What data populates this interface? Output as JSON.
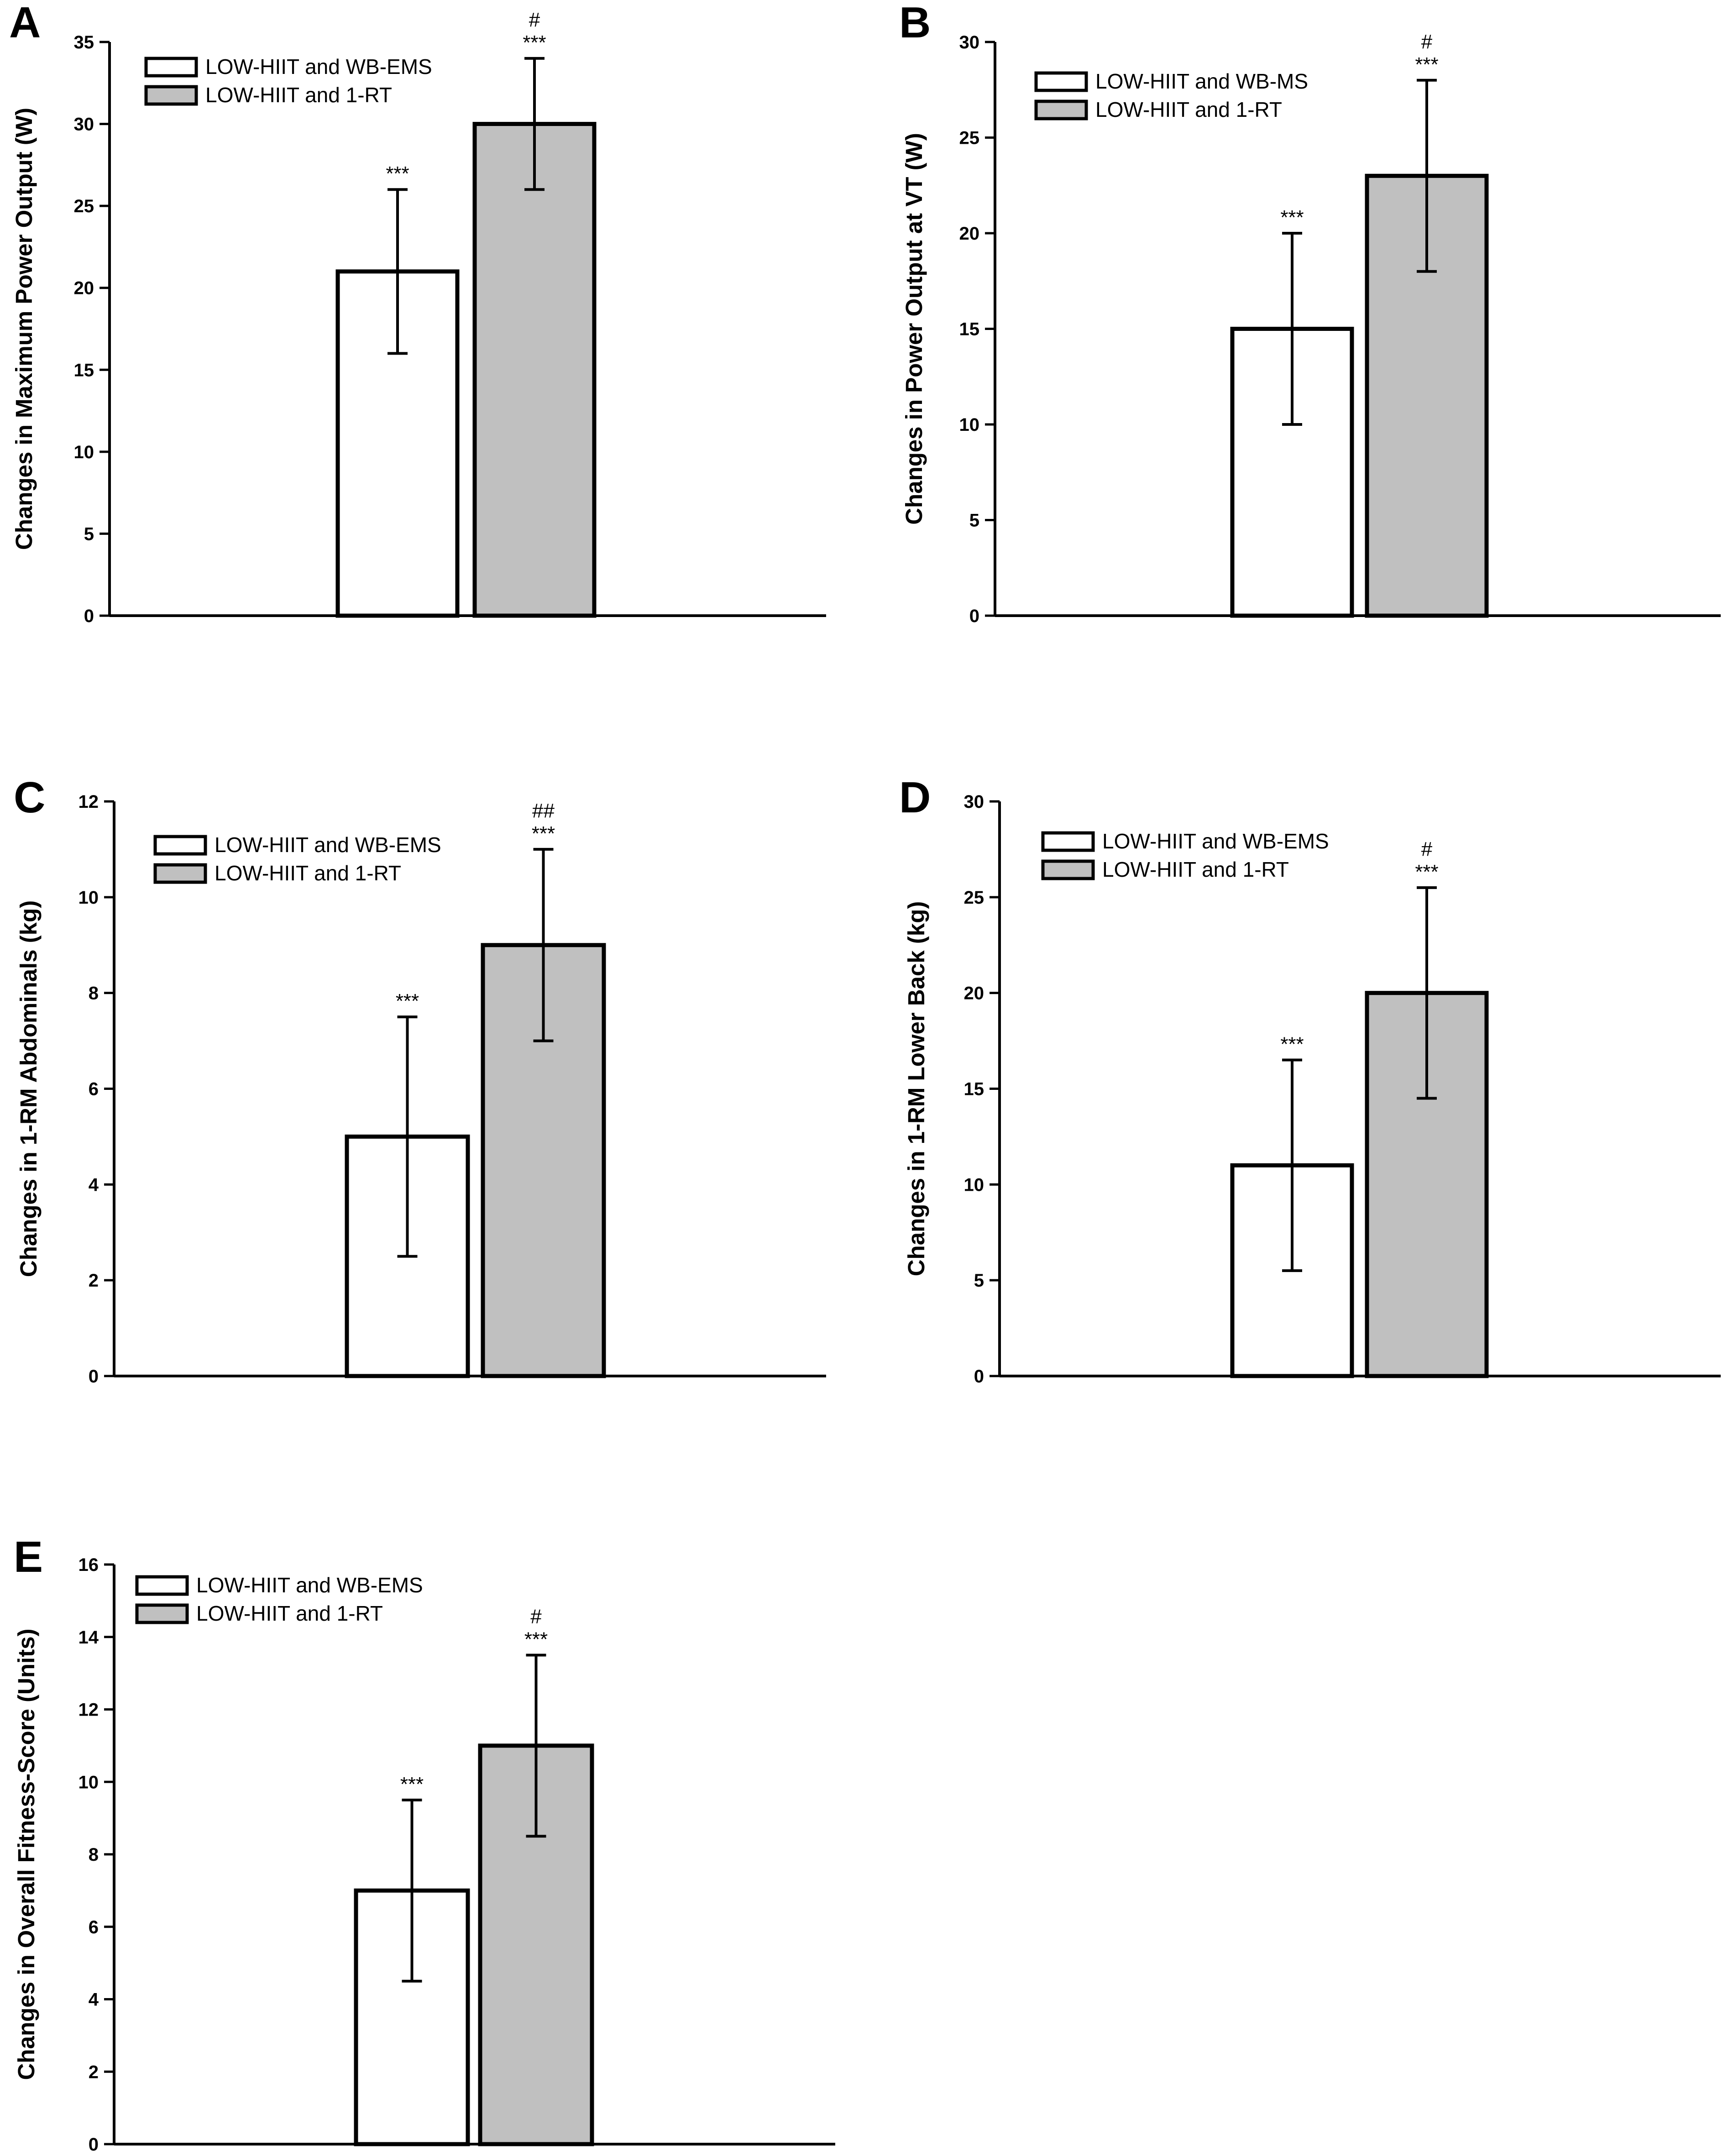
{
  "figure": {
    "colors": {
      "white_bar": "#ffffff",
      "gray_bar": "#c0c0c0",
      "axis": "#000000"
    }
  },
  "chart_data": [
    {
      "id": "A",
      "type": "bar",
      "panel_label": "A",
      "ylabel": "Changes in Maximum Power Output (W)",
      "ylim": [
        0,
        35
      ],
      "yticks": [
        0,
        5,
        10,
        15,
        20,
        25,
        30,
        35
      ],
      "legend": [
        "LOW-HIIT and WB-EMS",
        "LOW-HIIT and 1-RT"
      ],
      "legend_position": "top-left",
      "series": [
        {
          "name": "LOW-HIIT and WB-EMS",
          "value": 21,
          "error": 5,
          "significance": [
            "***"
          ]
        },
        {
          "name": "LOW-HIIT and 1-RT",
          "value": 30,
          "error": 4,
          "significance": [
            "#",
            "***"
          ]
        }
      ]
    },
    {
      "id": "B",
      "type": "bar",
      "panel_label": "B",
      "ylabel": "Changes in Power Output at VT (W)",
      "ylim": [
        0,
        30
      ],
      "yticks": [
        0,
        5,
        10,
        15,
        20,
        25,
        30
      ],
      "legend": [
        "LOW-HIIT and WB-MS",
        "LOW-HIIT and 1-RT"
      ],
      "legend_position": "top-left",
      "series": [
        {
          "name": "LOW-HIIT and WB-MS",
          "value": 15,
          "error": 5,
          "significance": [
            "***"
          ]
        },
        {
          "name": "LOW-HIIT and 1-RT",
          "value": 23,
          "error": 5,
          "significance": [
            "#",
            "***"
          ]
        }
      ]
    },
    {
      "id": "C",
      "type": "bar",
      "panel_label": "C",
      "ylabel": "Changes in 1-RM Abdominals (kg)",
      "ylim": [
        0,
        12
      ],
      "yticks": [
        0,
        2,
        4,
        6,
        8,
        10,
        12
      ],
      "legend": [
        "LOW-HIIT and WB-EMS",
        "LOW-HIIT and 1-RT"
      ],
      "legend_position": "top-left",
      "series": [
        {
          "name": "LOW-HIIT and WB-EMS",
          "value": 5,
          "error": 2.5,
          "significance": [
            "***"
          ]
        },
        {
          "name": "LOW-HIIT and 1-RT",
          "value": 9,
          "error": 2,
          "significance": [
            "##",
            "***"
          ]
        }
      ]
    },
    {
      "id": "D",
      "type": "bar",
      "panel_label": "D",
      "ylabel": "Changes in 1-RM Lower Back (kg)",
      "ylim": [
        0,
        30
      ],
      "yticks": [
        0,
        5,
        10,
        15,
        20,
        25,
        30
      ],
      "legend": [
        "LOW-HIIT and WB-EMS",
        "LOW-HIIT and 1-RT"
      ],
      "legend_position": "top-left",
      "series": [
        {
          "name": "LOW-HIIT and WB-EMS",
          "value": 11,
          "error": 5.5,
          "significance": [
            "***"
          ]
        },
        {
          "name": "LOW-HIIT and 1-RT",
          "value": 20,
          "error": 5.5,
          "significance": [
            "#",
            "***"
          ]
        }
      ]
    },
    {
      "id": "E",
      "type": "bar",
      "panel_label": "E",
      "ylabel": "Changes in Overall Fitness-Score (Units)",
      "ylim": [
        0,
        16
      ],
      "yticks": [
        0,
        2,
        4,
        6,
        8,
        10,
        12,
        14,
        16
      ],
      "legend": [
        "LOW-HIIT and WB-EMS",
        "LOW-HIIT and 1-RT"
      ],
      "legend_position": "top-left",
      "series": [
        {
          "name": "LOW-HIIT and WB-EMS",
          "value": 7,
          "error": 2.5,
          "significance": [
            "***"
          ]
        },
        {
          "name": "LOW-HIIT and 1-RT",
          "value": 11,
          "error": 2.5,
          "significance": [
            "#",
            "***"
          ]
        }
      ]
    }
  ]
}
